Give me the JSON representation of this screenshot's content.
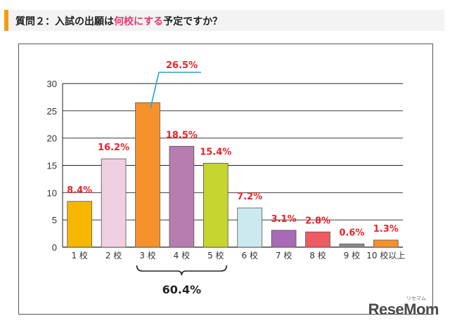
{
  "header": {
    "pre": "質問２：入試の出願は",
    "highlight": "何校にする",
    "post": "予定ですか？"
  },
  "chart_data": {
    "type": "bar",
    "categories": [
      "1 校",
      "2 校",
      "3 校",
      "4 校",
      "5 校",
      "6 校",
      "7 校",
      "8 校",
      "9 校",
      "10 校以上"
    ],
    "values": [
      8.4,
      16.2,
      26.5,
      18.5,
      15.4,
      7.2,
      3.1,
      2.8,
      0.6,
      1.3
    ],
    "labels": [
      "8.4%",
      "16.2%",
      "26.5%",
      "18.5%",
      "15.4%",
      "7.2%",
      "3.1%",
      "2.8%",
      "0.6%",
      "1.3%"
    ],
    "colors": [
      "#f5b700",
      "#f0cfe3",
      "#f5922b",
      "#b77db1",
      "#c6d530",
      "#cde9f0",
      "#a86ab4",
      "#f05a63",
      "#8c8c8c",
      "#f5922b"
    ],
    "ylim": [
      0,
      30
    ],
    "yticks": [
      0,
      5,
      10,
      15,
      20,
      25,
      30
    ],
    "grid": true,
    "bracket": {
      "from": 2,
      "to": 4,
      "label": "60.4%"
    },
    "label_color": "#e8242b"
  },
  "watermark": {
    "text": "ReseMom",
    "sub": "リセマム"
  }
}
